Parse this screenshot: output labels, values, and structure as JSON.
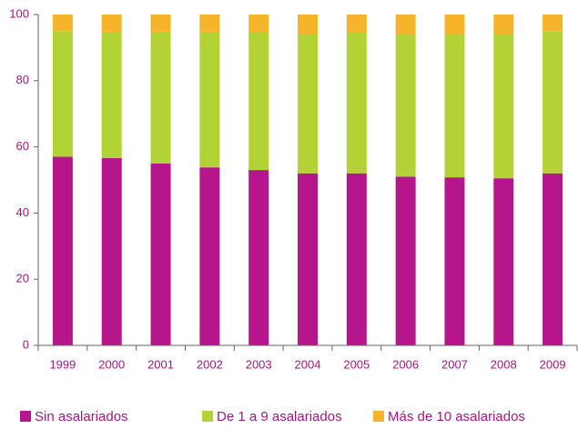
{
  "chart_data": {
    "type": "stacked_bar",
    "categories": [
      "1999",
      "2000",
      "2001",
      "2002",
      "2003",
      "2004",
      "2005",
      "2006",
      "2007",
      "2008",
      "2009"
    ],
    "series": [
      {
        "name": "Sin asalariados",
        "color": "#b5168c",
        "values": [
          57,
          56.6,
          55,
          53.8,
          53,
          52,
          52,
          51,
          50.8,
          50.5,
          52
        ]
      },
      {
        "name": "De 1 a 9 asalariados",
        "color": "#b3d235",
        "values": [
          38,
          38.2,
          39.8,
          41,
          41.8,
          42.2,
          42.5,
          43.2,
          43.4,
          43.7,
          43
        ]
      },
      {
        "name": "Más de 10 asalariados",
        "color": "#f5b42a",
        "values": [
          5,
          5.2,
          5.2,
          5.2,
          5.2,
          5.8,
          5.5,
          5.8,
          5.8,
          5.8,
          5
        ]
      }
    ],
    "ylim": [
      0,
      100
    ],
    "yticks": [
      0,
      20,
      40,
      60,
      80,
      100
    ],
    "legend": "bottom"
  }
}
